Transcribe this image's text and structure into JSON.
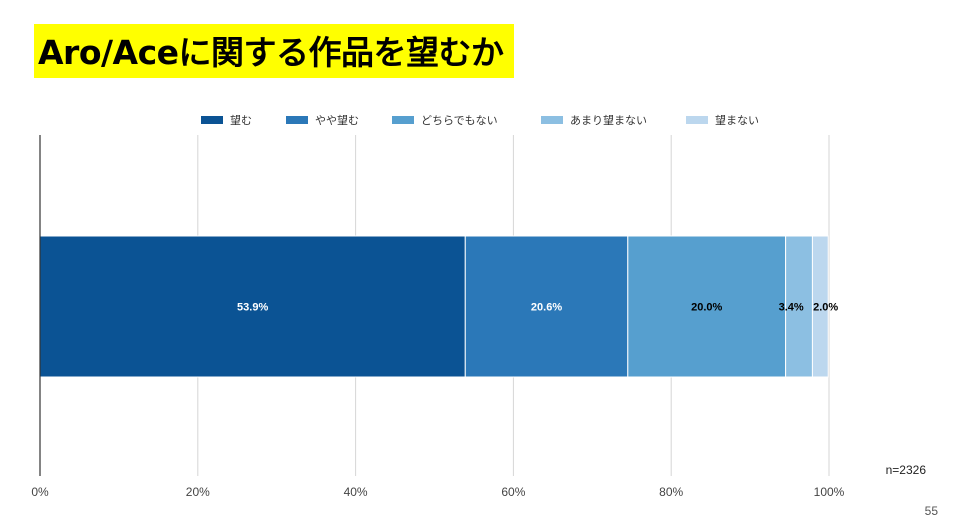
{
  "slide": {
    "title": "Aro/Aceに関する作品を望むか",
    "page_number": "55"
  },
  "chart_data": {
    "type": "bar",
    "orientation": "horizontal",
    "stacked": true,
    "normalized": true,
    "categories": [
      ""
    ],
    "series": [
      {
        "name": "望む",
        "values": [
          53.9
        ],
        "label": "53.9%",
        "color": "#0b5394",
        "label_color": "#ffffff"
      },
      {
        "name": "やや望む",
        "values": [
          20.6
        ],
        "label": "20.6%",
        "color": "#2b78b8",
        "label_color": "#ffffff"
      },
      {
        "name": "どちらでもない",
        "values": [
          20.0
        ],
        "label": "20.0%",
        "color": "#569fcf",
        "label_color": "#000000"
      },
      {
        "name": "あまり望まない",
        "values": [
          3.4
        ],
        "label": "3.4%",
        "color": "#8cbfe2",
        "label_color": "#000000"
      },
      {
        "name": "望まない",
        "values": [
          2.0
        ],
        "label": "2.0%",
        "color": "#bcd7ee",
        "label_color": "#000000"
      }
    ],
    "x_ticks": [
      "0%",
      "20%",
      "40%",
      "60%",
      "80%",
      "100%"
    ],
    "xlim": [
      0,
      100
    ],
    "grid": true,
    "legend": "top-center",
    "annotation": "n=2326"
  }
}
